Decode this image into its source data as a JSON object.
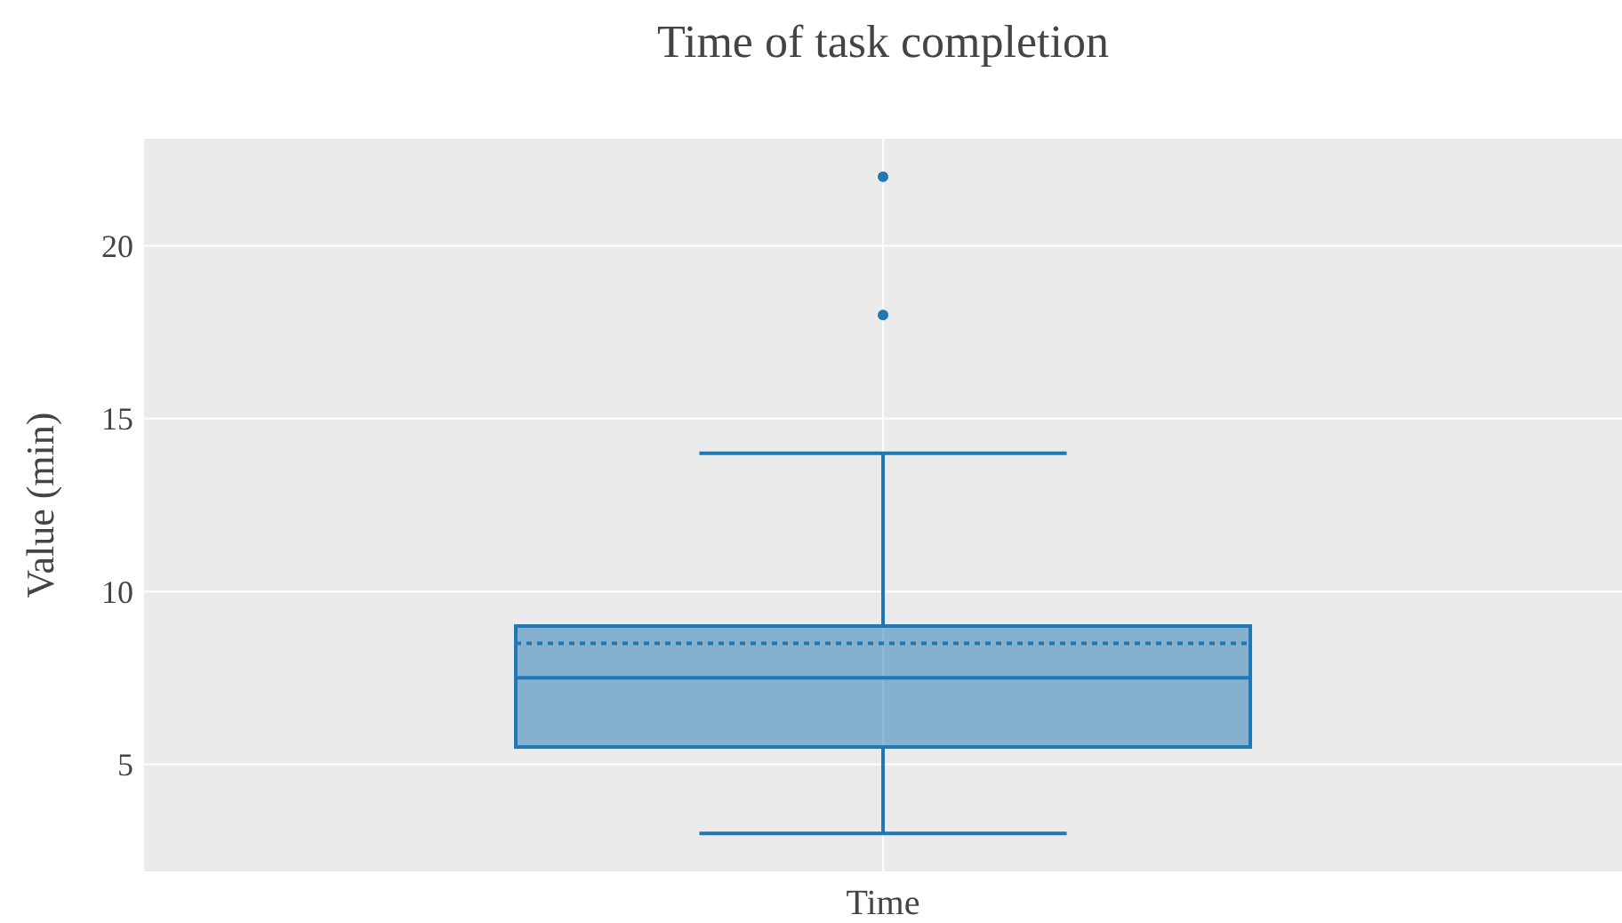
{
  "chart_data": {
    "type": "box",
    "title": "Time of task completion",
    "ylabel": "Value (min)",
    "categories": [
      "Time"
    ],
    "series": [
      {
        "color": "#1f77b4",
        "boxes": [
          {
            "low": 3,
            "q1": 5.5,
            "median": 7.5,
            "q3": 9,
            "high": 14,
            "mean": 8.5,
            "outliers": [
              18,
              22
            ]
          }
        ]
      }
    ],
    "ylim": [
      1.9,
      23.1
    ],
    "yticks": [
      5,
      10,
      15,
      20
    ],
    "grid": true
  }
}
